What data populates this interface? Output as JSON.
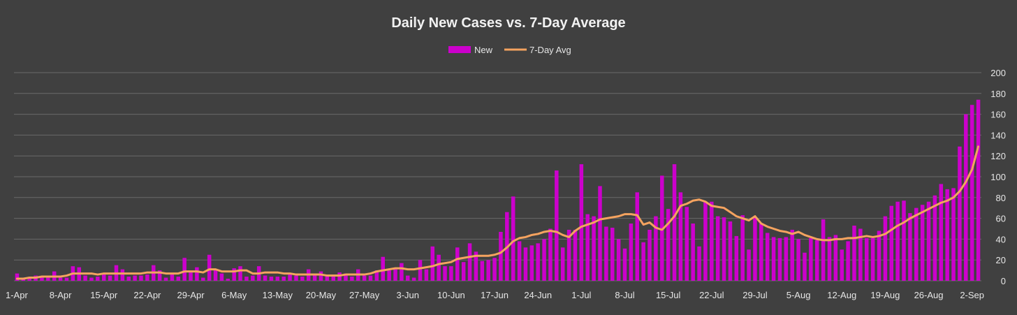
{
  "chart_data": {
    "type": "bar",
    "title": "Daily New Cases vs. 7-Day Average",
    "xlabel": "",
    "ylabel": "",
    "ylim": [
      0,
      200
    ],
    "yticks": [
      0,
      20,
      40,
      60,
      80,
      100,
      120,
      140,
      160,
      180,
      200
    ],
    "grid": true,
    "legend": "top-center",
    "x_tick_labels": [
      "1-Apr",
      "8-Apr",
      "15-Apr",
      "22-Apr",
      "29-Apr",
      "6-May",
      "13-May",
      "20-May",
      "27-May",
      "3-Jun",
      "10-Jun",
      "17-Jun",
      "24-Jun",
      "1-Jul",
      "8-Jul",
      "15-Jul",
      "22-Jul",
      "29-Jul",
      "5-Aug",
      "12-Aug",
      "19-Aug",
      "26-Aug",
      "2-Sep"
    ],
    "categories": [
      "1-Apr",
      "2-Apr",
      "3-Apr",
      "4-Apr",
      "5-Apr",
      "6-Apr",
      "7-Apr",
      "8-Apr",
      "9-Apr",
      "10-Apr",
      "11-Apr",
      "12-Apr",
      "13-Apr",
      "14-Apr",
      "15-Apr",
      "16-Apr",
      "17-Apr",
      "18-Apr",
      "19-Apr",
      "20-Apr",
      "21-Apr",
      "22-Apr",
      "23-Apr",
      "24-Apr",
      "25-Apr",
      "26-Apr",
      "27-Apr",
      "28-Apr",
      "29-Apr",
      "30-Apr",
      "1-May",
      "2-May",
      "3-May",
      "4-May",
      "5-May",
      "6-May",
      "7-May",
      "8-May",
      "9-May",
      "10-May",
      "11-May",
      "12-May",
      "13-May",
      "14-May",
      "15-May",
      "16-May",
      "17-May",
      "18-May",
      "19-May",
      "20-May",
      "21-May",
      "22-May",
      "23-May",
      "24-May",
      "25-May",
      "26-May",
      "27-May",
      "28-May",
      "29-May",
      "30-May",
      "31-May",
      "1-Jun",
      "2-Jun",
      "3-Jun",
      "4-Jun",
      "5-Jun",
      "6-Jun",
      "7-Jun",
      "8-Jun",
      "9-Jun",
      "10-Jun",
      "11-Jun",
      "12-Jun",
      "13-Jun",
      "14-Jun",
      "15-Jun",
      "16-Jun",
      "17-Jun",
      "18-Jun",
      "19-Jun",
      "20-Jun",
      "21-Jun",
      "22-Jun",
      "23-Jun",
      "24-Jun",
      "25-Jun",
      "26-Jun",
      "27-Jun",
      "28-Jun",
      "29-Jun",
      "30-Jun",
      "1-Jul",
      "2-Jul",
      "3-Jul",
      "4-Jul",
      "5-Jul",
      "6-Jul",
      "7-Jul",
      "8-Jul",
      "9-Jul",
      "10-Jul",
      "11-Jul",
      "12-Jul",
      "13-Jul",
      "14-Jul",
      "15-Jul",
      "16-Jul",
      "17-Jul",
      "18-Jul",
      "19-Jul",
      "20-Jul",
      "21-Jul",
      "22-Jul",
      "23-Jul",
      "24-Jul",
      "25-Jul",
      "26-Jul",
      "27-Jul",
      "28-Jul",
      "29-Jul",
      "30-Jul",
      "31-Jul",
      "1-Aug",
      "2-Aug",
      "3-Aug",
      "4-Aug",
      "5-Aug",
      "6-Aug",
      "7-Aug",
      "8-Aug",
      "9-Aug",
      "10-Aug",
      "11-Aug",
      "12-Aug",
      "13-Aug",
      "14-Aug",
      "15-Aug",
      "16-Aug",
      "17-Aug",
      "18-Aug",
      "19-Aug",
      "20-Aug",
      "21-Aug",
      "22-Aug",
      "23-Aug",
      "24-Aug",
      "25-Aug",
      "26-Aug",
      "27-Aug",
      "28-Aug",
      "29-Aug",
      "30-Aug",
      "31-Aug",
      "1-Sep",
      "2-Sep",
      "3-Sep"
    ],
    "series": [
      {
        "name": "New",
        "type": "bar",
        "color": "#cc00cc",
        "values": [
          7,
          2,
          2,
          5,
          4,
          3,
          9,
          3,
          3,
          14,
          13,
          5,
          3,
          4,
          6,
          5,
          15,
          11,
          4,
          5,
          5,
          6,
          15,
          10,
          3,
          6,
          4,
          22,
          8,
          13,
          3,
          25,
          11,
          7,
          2,
          12,
          14,
          4,
          5,
          14,
          5,
          4,
          4,
          4,
          6,
          5,
          4,
          11,
          6,
          9,
          5,
          4,
          8,
          7,
          4,
          11,
          5,
          5,
          10,
          23,
          10,
          11,
          17,
          5,
          3,
          20,
          11,
          33,
          25,
          14,
          14,
          32,
          18,
          36,
          28,
          19,
          20,
          22,
          47,
          66,
          81,
          38,
          32,
          34,
          36,
          40,
          50,
          106,
          32,
          49,
          49,
          112,
          64,
          62,
          91,
          52,
          51,
          40,
          31,
          55,
          85,
          37,
          49,
          62,
          101,
          69,
          112,
          85,
          71,
          55,
          33,
          76,
          76,
          62,
          61,
          57,
          43,
          63,
          30,
          61,
          55,
          46,
          42,
          41,
          42,
          49,
          40,
          27,
          41,
          39,
          59,
          42,
          44,
          30,
          38,
          53,
          50,
          41,
          41,
          48,
          62,
          72,
          76,
          77,
          65,
          70,
          73,
          76,
          82,
          93,
          88,
          89,
          129,
          160,
          169,
          174
        ],
        "data_labels": false
      },
      {
        "name": "7-Day Avg",
        "type": "line",
        "color": "#f5a35f",
        "values": [
          2,
          2,
          3,
          3,
          4,
          4,
          4,
          4,
          5,
          7,
          7,
          7,
          7,
          6,
          7,
          7,
          7,
          7,
          7,
          7,
          7,
          8,
          8,
          8,
          7,
          7,
          7,
          9,
          9,
          9,
          8,
          11,
          11,
          9,
          9,
          9,
          10,
          10,
          7,
          7,
          8,
          8,
          8,
          7,
          7,
          6,
          6,
          6,
          6,
          6,
          5,
          5,
          5,
          6,
          6,
          6,
          6,
          7,
          9,
          10,
          11,
          12,
          12,
          11,
          11,
          12,
          13,
          14,
          16,
          17,
          18,
          21,
          22,
          23,
          24,
          24,
          24,
          25,
          27,
          32,
          38,
          41,
          42,
          44,
          45,
          47,
          48,
          47,
          44,
          42,
          48,
          52,
          54,
          56,
          59,
          60,
          61,
          62,
          64,
          64,
          63,
          54,
          56,
          51,
          49,
          55,
          62,
          72,
          74,
          77,
          78,
          76,
          72,
          71,
          70,
          66,
          62,
          60,
          58,
          62,
          55,
          52,
          50,
          48,
          47,
          45,
          47,
          44,
          42,
          40,
          39,
          39,
          40,
          40,
          41,
          41,
          42,
          43,
          42,
          43,
          45,
          49,
          53,
          56,
          60,
          63,
          66,
          69,
          72,
          75,
          77,
          80,
          86,
          95,
          107,
          129
        ]
      }
    ]
  }
}
